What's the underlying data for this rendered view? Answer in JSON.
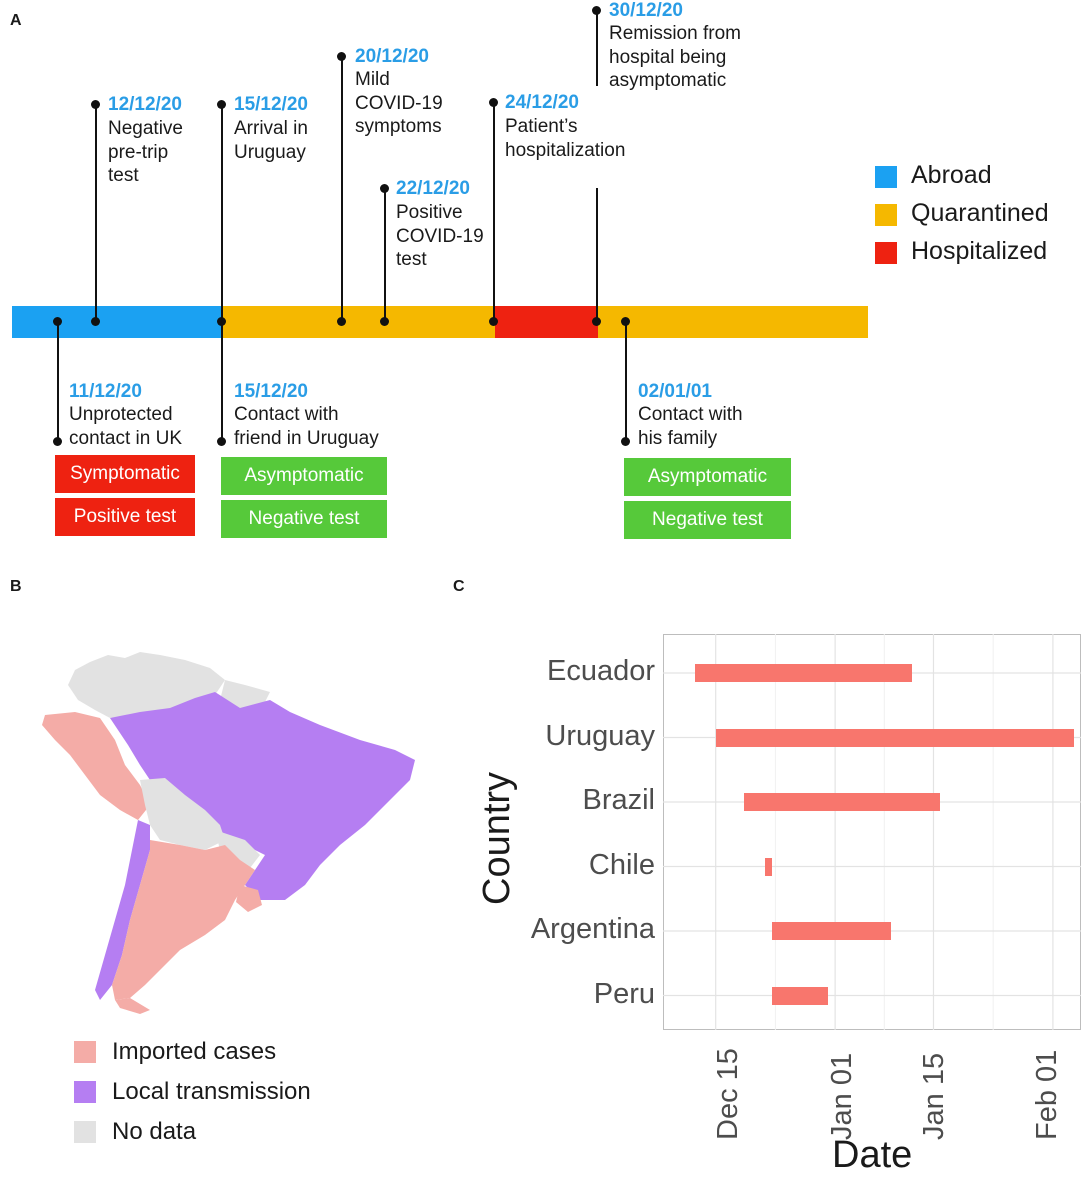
{
  "panels": {
    "a": "A",
    "b": "B",
    "c": "C"
  },
  "colors": {
    "abroad": "#1ba1f2",
    "quarantined": "#f5b800",
    "hospitalized": "#ee2211",
    "symptomatic_box": "#ee2211",
    "asymptomatic_box": "#56c93a",
    "date_text": "#2a9de6",
    "imported": "#f4aca7",
    "local": "#b57ef2",
    "nodata": "#e2e2e2",
    "gantt_bar": "#f8766d"
  },
  "timeline": {
    "legend": [
      {
        "label": "Abroad",
        "color": "#1ba1f2"
      },
      {
        "label": "Quarantined",
        "color": "#f5b800"
      },
      {
        "label": "Hospitalized",
        "color": "#ee2211"
      }
    ],
    "events_above": [
      {
        "date": "12/12/20",
        "desc": "Negative\npre-trip\ntest"
      },
      {
        "date": "15/12/20",
        "desc": "Arrival in\nUruguay"
      },
      {
        "date": "20/12/20",
        "desc": "Mild\nCOVID-19\nsymptoms"
      },
      {
        "date": "22/12/20",
        "desc": "Positive\nCOVID-19\ntest"
      },
      {
        "date": "24/12/20",
        "desc": "Patient’s\nhospitalization"
      },
      {
        "date": "30/12/20",
        "desc": "Remission from\nhospital being\nasymptomatic"
      }
    ],
    "events_below": [
      {
        "date": "11/12/20",
        "desc": "Unprotected\ncontact in UK",
        "status": "Symptomatic",
        "test": "Positive test"
      },
      {
        "date": "15/12/20",
        "desc": "Contact with\nfriend in Uruguay",
        "status": "Asymptomatic",
        "test": "Negative test"
      },
      {
        "date": "02/01/01",
        "desc": "Contact with\nhis family",
        "status": "Asymptomatic",
        "test": "Negative test"
      }
    ]
  },
  "map": {
    "legend": [
      {
        "label": "Imported cases",
        "color": "#f4aca7"
      },
      {
        "label": "Local transmission",
        "color": "#b57ef2"
      },
      {
        "label": "No data",
        "color": "#e2e2e2"
      }
    ]
  },
  "chart_data": {
    "type": "gantt",
    "title": "",
    "xlabel": "Date",
    "ylabel": "Country",
    "x_ticks": [
      "Dec 15",
      "Jan 01",
      "Jan 15",
      "Feb 01"
    ],
    "x_tick_days": [
      0,
      17,
      31,
      48
    ],
    "xlim_days": [
      -7.5,
      52
    ],
    "categories": [
      "Ecuador",
      "Uruguay",
      "Brazil",
      "Chile",
      "Argentina",
      "Peru"
    ],
    "start_days": [
      -3,
      0,
      4,
      7,
      8,
      8
    ],
    "end_days": [
      28,
      51,
      32,
      8,
      25,
      16
    ]
  }
}
